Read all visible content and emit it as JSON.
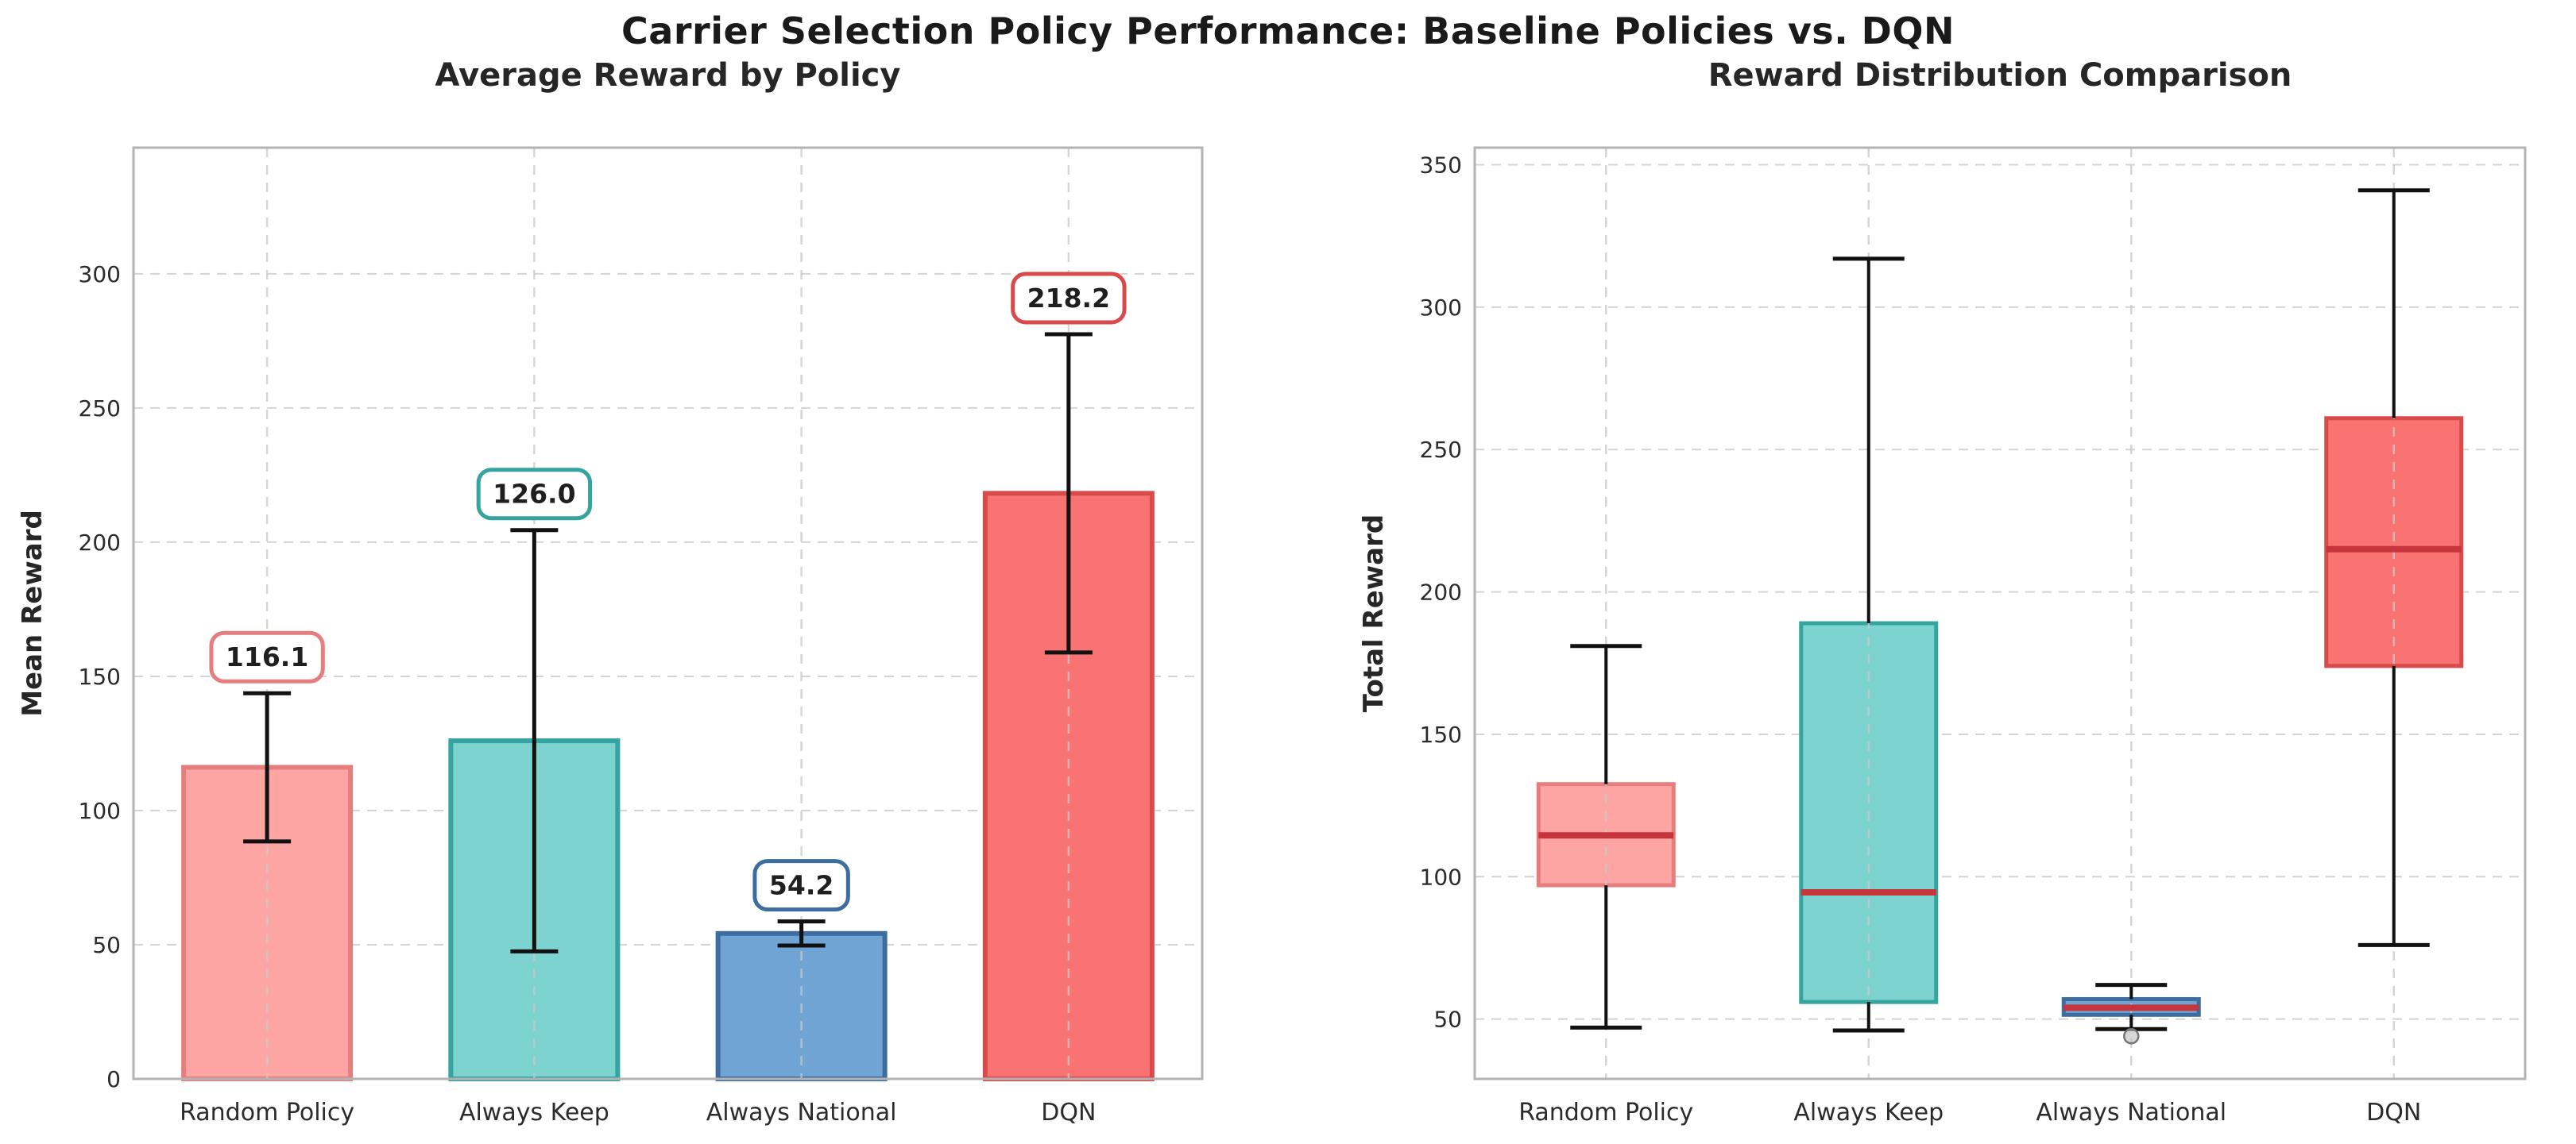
{
  "figure": {
    "title": "Carrier Selection Policy Performance: Baseline Policies vs. DQN",
    "background_color": "#ffffff",
    "title_color": "#1a1a1a"
  },
  "chart_data": [
    {
      "type": "bar",
      "title": "Average Reward by Policy",
      "xlabel": "",
      "ylabel": "Mean Reward",
      "categories": [
        "Random Policy",
        "Always Keep",
        "Always National",
        "DQN"
      ],
      "values": [
        116.1,
        126.0,
        54.2,
        218.2
      ],
      "error_bars": [
        27.6,
        78.5,
        4.5,
        59.3
      ],
      "bar_labels": [
        "116.1",
        "126.0",
        "54.2",
        "218.2"
      ],
      "yticks": [
        0,
        50,
        100,
        150,
        200,
        250,
        300
      ],
      "ylim": [
        0,
        347
      ],
      "grid": "dashed",
      "legend": "none",
      "bar_fill_colors": [
        "#FCA5A3",
        "#7CD3D0",
        "#70A4D4",
        "#FA7373"
      ],
      "bar_edge_colors": [
        "#E57E7E",
        "#35A39E",
        "#3D6D9E",
        "#D94A4A"
      ]
    },
    {
      "type": "box",
      "title": "Reward Distribution Comparison",
      "xlabel": "",
      "ylabel": "Total Reward",
      "categories": [
        "Random Policy",
        "Always Keep",
        "Always National",
        "DQN"
      ],
      "boxes": [
        {
          "label": "Random Policy",
          "whisker_low": 47,
          "q1": 97,
          "median": 114.5,
          "q3": 132.5,
          "whisker_high": 181,
          "outliers": []
        },
        {
          "label": "Always Keep",
          "whisker_low": 46,
          "q1": 56,
          "median": 94.5,
          "q3": 189,
          "whisker_high": 317,
          "outliers": []
        },
        {
          "label": "Always National",
          "whisker_low": 46.5,
          "q1": 51.5,
          "median": 54,
          "q3": 57,
          "whisker_high": 62,
          "outliers": [
            44
          ]
        },
        {
          "label": "DQN",
          "whisker_low": 76,
          "q1": 174,
          "median": 215,
          "q3": 261,
          "whisker_high": 341,
          "outliers": []
        }
      ],
      "yticks": [
        50,
        100,
        150,
        200,
        250,
        300,
        350
      ],
      "ylim": [
        29,
        356
      ],
      "grid": "dashed",
      "legend": "none",
      "box_fill_colors": [
        "#FCA5A3",
        "#7CD3D0",
        "#70A4D4",
        "#FA7373"
      ],
      "box_edge_colors": [
        "#E57E7E",
        "#35A39E",
        "#3D6D9E",
        "#D94A4A"
      ],
      "median_color": "#C6353B",
      "outlier_color": "#bdbdbd",
      "outlier_edge_color": "#777777"
    }
  ],
  "style": {
    "h_grid_color": "#d4d4d4",
    "v_grid_color": "#c9c9c9",
    "spine_color": "#b3b3b3",
    "tick_label_color": "#2b2b2b",
    "axis_label_color": "#262626",
    "subplot_title_color": "#262626",
    "error_bar_color": "#111111",
    "annotation_text_color": "#1f1f1f",
    "annotation_bg": "#ffffff"
  }
}
